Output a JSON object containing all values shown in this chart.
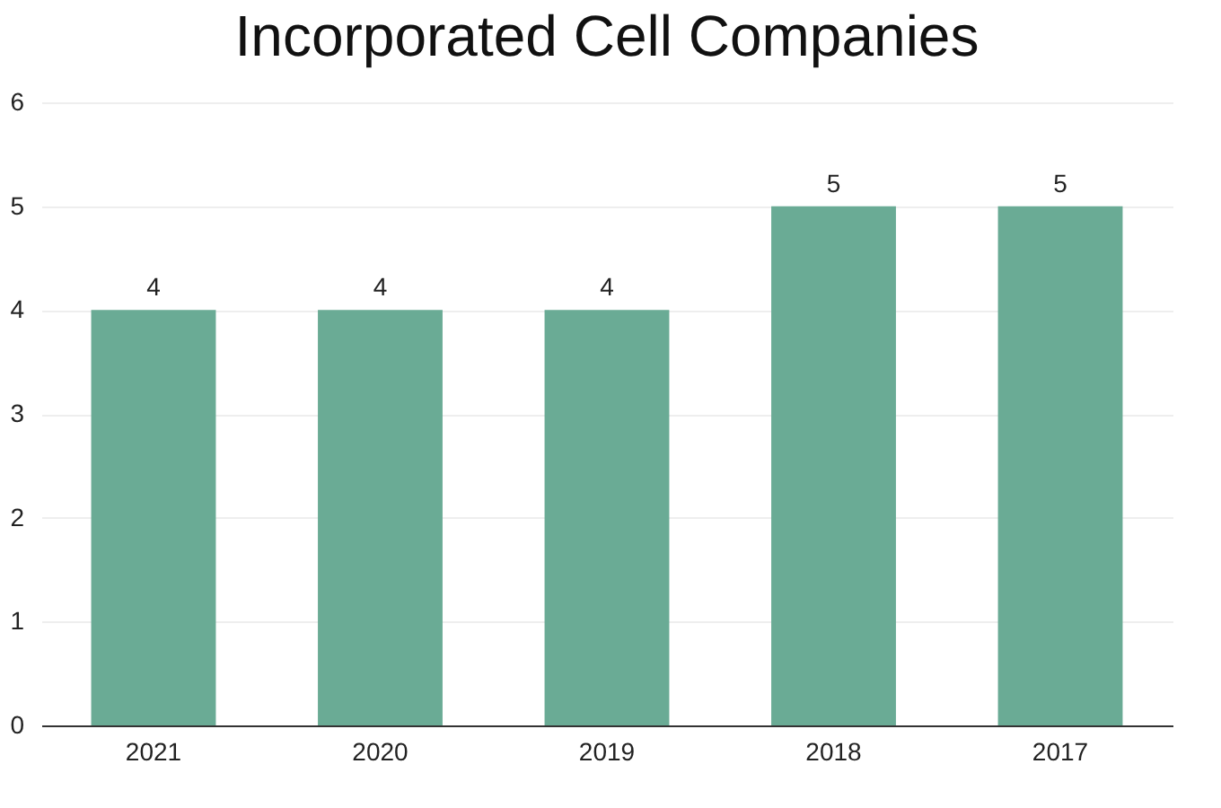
{
  "chart_data": {
    "type": "bar",
    "title": "Incorporated Cell Companies",
    "categories": [
      "2021",
      "2020",
      "2019",
      "2018",
      "2017"
    ],
    "values": [
      4,
      4,
      4,
      5,
      5
    ],
    "color": "#6aab95",
    "ylim": [
      0,
      6
    ],
    "yticks": [
      0,
      1,
      2,
      3,
      4,
      5,
      6
    ],
    "grid": "y",
    "data_labels": true
  }
}
